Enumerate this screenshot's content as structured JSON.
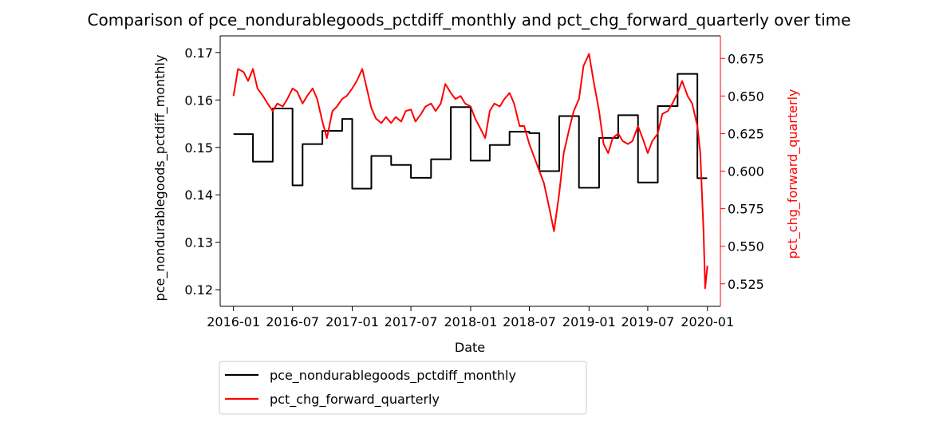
{
  "chart_data": {
    "type": "line",
    "title": "Comparison of pce_nondurablegoods_pctdiff_monthly and pct_chg_forward_quarterly over time",
    "xlabel": "Date",
    "ylabel_left": "pce_nondurablegoods_pctdiff_monthly",
    "ylabel_right": "pct_chg_forward_quarterly",
    "x_ticks": [
      "2016-01",
      "2016-07",
      "2017-01",
      "2017-07",
      "2018-01",
      "2018-07",
      "2019-01",
      "2019-07",
      "2020-01"
    ],
    "y_left_ticks": [
      "0.12",
      "0.13",
      "0.14",
      "0.15",
      "0.16",
      "0.17"
    ],
    "y_right_ticks": [
      "0.525",
      "0.550",
      "0.575",
      "0.600",
      "0.625",
      "0.650",
      "0.675"
    ],
    "ylim_left": [
      0.1165,
      0.1735
    ],
    "ylim_right": [
      0.51,
      0.69
    ],
    "xlim": [
      "2015-11-21",
      "2020-02-10"
    ],
    "legend_position": "below-left",
    "grid": false,
    "colors": {
      "left_series": "#000000",
      "right_series": "#ff0000",
      "right_axis": "#ff0000"
    },
    "series": [
      {
        "name": "pce_nondurablegoods_pctdiff_monthly",
        "axis": "left",
        "step": true,
        "points": [
          [
            "2016-01-01",
            0.1528
          ],
          [
            "2016-02-01",
            0.1528
          ],
          [
            "2016-03-01",
            0.147
          ],
          [
            "2016-04-01",
            0.147
          ],
          [
            "2016-05-01",
            0.1582
          ],
          [
            "2016-06-01",
            0.1582
          ],
          [
            "2016-07-01",
            0.142
          ],
          [
            "2016-08-01",
            0.1507
          ],
          [
            "2016-09-01",
            0.1507
          ],
          [
            "2016-10-01",
            0.1535
          ],
          [
            "2016-11-01",
            0.1535
          ],
          [
            "2016-12-01",
            0.156
          ],
          [
            "2017-01-01",
            0.1413
          ],
          [
            "2017-02-01",
            0.1413
          ],
          [
            "2017-03-01",
            0.1482
          ],
          [
            "2017-04-01",
            0.1482
          ],
          [
            "2017-05-01",
            0.1463
          ],
          [
            "2017-06-01",
            0.1463
          ],
          [
            "2017-07-01",
            0.1436
          ],
          [
            "2017-08-01",
            0.1436
          ],
          [
            "2017-09-01",
            0.1475
          ],
          [
            "2017-10-01",
            0.1475
          ],
          [
            "2017-11-01",
            0.1585
          ],
          [
            "2017-12-01",
            0.1585
          ],
          [
            "2018-01-01",
            0.1472
          ],
          [
            "2018-02-01",
            0.1472
          ],
          [
            "2018-03-01",
            0.1505
          ],
          [
            "2018-04-01",
            0.1505
          ],
          [
            "2018-05-01",
            0.1533
          ],
          [
            "2018-06-01",
            0.1533
          ],
          [
            "2018-07-01",
            0.153
          ],
          [
            "2018-08-01",
            0.145
          ],
          [
            "2018-09-01",
            0.145
          ],
          [
            "2018-10-01",
            0.1566
          ],
          [
            "2018-11-01",
            0.1566
          ],
          [
            "2018-12-01",
            0.1415
          ],
          [
            "2019-01-01",
            0.1415
          ],
          [
            "2019-02-01",
            0.152
          ],
          [
            "2019-03-01",
            0.152
          ],
          [
            "2019-04-01",
            0.1568
          ],
          [
            "2019-05-01",
            0.1568
          ],
          [
            "2019-06-01",
            0.1426
          ],
          [
            "2019-07-01",
            0.1426
          ],
          [
            "2019-08-01",
            0.1587
          ],
          [
            "2019-09-01",
            0.1587
          ],
          [
            "2019-10-01",
            0.1655
          ],
          [
            "2019-11-01",
            0.1655
          ],
          [
            "2019-12-01",
            0.1435
          ]
        ]
      },
      {
        "name": "pct_chg_forward_quarterly",
        "axis": "right",
        "step": false,
        "points": [
          [
            "2016-01-01",
            0.65
          ],
          [
            "2016-01-15",
            0.668
          ],
          [
            "2016-02-01",
            0.666
          ],
          [
            "2016-02-15",
            0.66
          ],
          [
            "2016-03-01",
            0.668
          ],
          [
            "2016-03-15",
            0.655
          ],
          [
            "2016-04-01",
            0.65
          ],
          [
            "2016-04-15",
            0.645
          ],
          [
            "2016-05-01",
            0.64
          ],
          [
            "2016-05-15",
            0.645
          ],
          [
            "2016-06-01",
            0.643
          ],
          [
            "2016-06-15",
            0.648
          ],
          [
            "2016-07-01",
            0.655
          ],
          [
            "2016-07-15",
            0.653
          ],
          [
            "2016-08-01",
            0.645
          ],
          [
            "2016-08-15",
            0.65
          ],
          [
            "2016-09-01",
            0.655
          ],
          [
            "2016-09-15",
            0.648
          ],
          [
            "2016-10-01",
            0.633
          ],
          [
            "2016-10-15",
            0.622
          ],
          [
            "2016-11-01",
            0.64
          ],
          [
            "2016-11-15",
            0.643
          ],
          [
            "2016-12-01",
            0.648
          ],
          [
            "2016-12-15",
            0.65
          ],
          [
            "2017-01-01",
            0.655
          ],
          [
            "2017-01-15",
            0.66
          ],
          [
            "2017-02-01",
            0.668
          ],
          [
            "2017-02-15",
            0.655
          ],
          [
            "2017-03-01",
            0.642
          ],
          [
            "2017-03-15",
            0.635
          ],
          [
            "2017-04-01",
            0.632
          ],
          [
            "2017-04-15",
            0.636
          ],
          [
            "2017-05-01",
            0.632
          ],
          [
            "2017-05-15",
            0.636
          ],
          [
            "2017-06-01",
            0.633
          ],
          [
            "2017-06-15",
            0.64
          ],
          [
            "2017-07-01",
            0.641
          ],
          [
            "2017-07-15",
            0.633
          ],
          [
            "2017-08-01",
            0.638
          ],
          [
            "2017-08-15",
            0.643
          ],
          [
            "2017-09-01",
            0.645
          ],
          [
            "2017-09-15",
            0.64
          ],
          [
            "2017-10-01",
            0.645
          ],
          [
            "2017-10-15",
            0.658
          ],
          [
            "2017-11-01",
            0.652
          ],
          [
            "2017-11-15",
            0.648
          ],
          [
            "2017-12-01",
            0.65
          ],
          [
            "2017-12-15",
            0.645
          ],
          [
            "2018-01-01",
            0.643
          ],
          [
            "2018-01-15",
            0.635
          ],
          [
            "2018-02-01",
            0.628
          ],
          [
            "2018-02-15",
            0.622
          ],
          [
            "2018-03-01",
            0.64
          ],
          [
            "2018-03-15",
            0.645
          ],
          [
            "2018-04-01",
            0.643
          ],
          [
            "2018-04-15",
            0.648
          ],
          [
            "2018-05-01",
            0.652
          ],
          [
            "2018-05-15",
            0.645
          ],
          [
            "2018-06-01",
            0.63
          ],
          [
            "2018-06-15",
            0.63
          ],
          [
            "2018-07-01",
            0.618
          ],
          [
            "2018-07-15",
            0.61
          ],
          [
            "2018-08-01",
            0.6
          ],
          [
            "2018-08-15",
            0.592
          ],
          [
            "2018-09-01",
            0.575
          ],
          [
            "2018-09-15",
            0.56
          ],
          [
            "2018-10-01",
            0.585
          ],
          [
            "2018-10-15",
            0.612
          ],
          [
            "2018-11-01",
            0.628
          ],
          [
            "2018-11-15",
            0.64
          ],
          [
            "2018-12-01",
            0.648
          ],
          [
            "2018-12-15",
            0.67
          ],
          [
            "2019-01-01",
            0.678
          ],
          [
            "2019-01-15",
            0.66
          ],
          [
            "2019-02-01",
            0.64
          ],
          [
            "2019-02-15",
            0.618
          ],
          [
            "2019-03-01",
            0.612
          ],
          [
            "2019-03-15",
            0.622
          ],
          [
            "2019-04-01",
            0.625
          ],
          [
            "2019-04-15",
            0.62
          ],
          [
            "2019-05-01",
            0.618
          ],
          [
            "2019-05-15",
            0.62
          ],
          [
            "2019-06-01",
            0.63
          ],
          [
            "2019-06-15",
            0.622
          ],
          [
            "2019-07-01",
            0.612
          ],
          [
            "2019-07-15",
            0.62
          ],
          [
            "2019-08-01",
            0.625
          ],
          [
            "2019-08-15",
            0.638
          ],
          [
            "2019-09-01",
            0.64
          ],
          [
            "2019-09-15",
            0.645
          ],
          [
            "2019-10-01",
            0.652
          ],
          [
            "2019-10-15",
            0.66
          ],
          [
            "2019-11-01",
            0.65
          ],
          [
            "2019-11-15",
            0.645
          ],
          [
            "2019-12-01",
            0.63
          ],
          [
            "2019-12-10",
            0.612
          ],
          [
            "2019-12-20",
            0.56
          ],
          [
            "2019-12-25",
            0.522
          ],
          [
            "2020-01-01",
            0.537
          ]
        ]
      }
    ]
  }
}
